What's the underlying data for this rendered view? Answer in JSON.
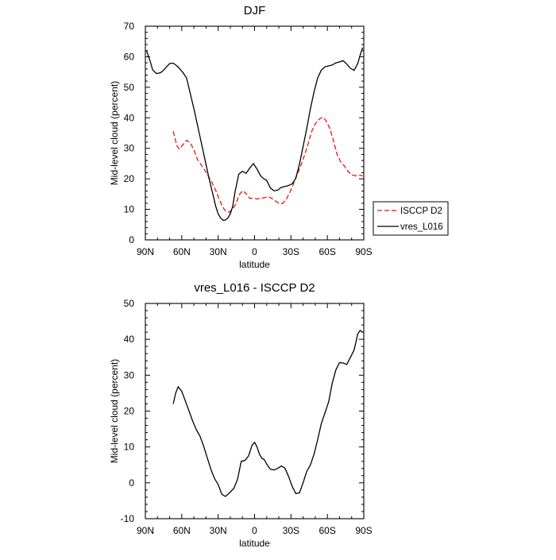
{
  "chart_data": [
    {
      "type": "line",
      "title": "DJF",
      "xlabel": "latitude",
      "ylabel": "Mid-level cloud (percent)",
      "xlim": [
        90,
        -90
      ],
      "ylim": [
        0,
        70
      ],
      "x_ticks": [
        {
          "value": 90,
          "label": "90N"
        },
        {
          "value": 60,
          "label": "60N"
        },
        {
          "value": 30,
          "label": "30N"
        },
        {
          "value": 0,
          "label": "0"
        },
        {
          "value": -30,
          "label": "30S"
        },
        {
          "value": -60,
          "label": "60S"
        },
        {
          "value": -90,
          "label": "90S"
        }
      ],
      "y_ticks": [
        0,
        10,
        20,
        30,
        40,
        50,
        60,
        70
      ],
      "legend": {
        "placement": "right",
        "entries": [
          "ISCCP D2",
          "vres_L016"
        ]
      },
      "series": [
        {
          "name": "ISCCP D2",
          "color": "#e8150f",
          "style": "dashed",
          "x": [
            67,
            64,
            62,
            59,
            56,
            53,
            50,
            47,
            44,
            41,
            38,
            35,
            32,
            29,
            26,
            24,
            21,
            18,
            15,
            13,
            10,
            7,
            4,
            1,
            -2,
            -5,
            -8,
            -11,
            -14,
            -17,
            -20,
            -23,
            -26,
            -29,
            -32,
            -35,
            -38,
            -41,
            -44,
            -47,
            -50,
            -53,
            -56,
            -59,
            -62,
            -65,
            -68,
            -71,
            -74,
            -77,
            -80,
            -83,
            -86,
            -89
          ],
          "y": [
            35.6,
            30.8,
            29.8,
            31.2,
            32.6,
            31.8,
            29.5,
            26.3,
            24.6,
            22.8,
            20.8,
            18.8,
            16.2,
            13.2,
            10.6,
            9.5,
            9.0,
            10.2,
            12.0,
            14.5,
            16.1,
            15.2,
            13.6,
            13.7,
            13.4,
            13.6,
            13.8,
            14.2,
            13.6,
            12.8,
            12.0,
            11.9,
            13.2,
            15.5,
            18.3,
            21.4,
            24.2,
            27.5,
            31.2,
            35.5,
            38.0,
            39.5,
            40.2,
            39.0,
            36.5,
            32.5,
            28.0,
            25.5,
            24.2,
            22.5,
            21.3,
            21.0,
            21.2,
            21.0
          ]
        },
        {
          "name": "vres_L016",
          "color": "#000000",
          "style": "solid",
          "x": [
            89,
            86,
            84,
            81,
            78,
            76,
            73,
            70,
            67,
            64,
            62,
            59,
            56,
            53,
            50,
            47,
            44,
            41,
            38,
            35,
            32,
            30,
            28,
            26,
            24,
            22,
            20,
            18,
            16,
            13,
            10,
            7,
            4,
            1,
            -2,
            -5,
            -7,
            -10,
            -13,
            -16,
            -19,
            -22,
            -25,
            -28,
            -31,
            -34,
            -37,
            -40,
            -43,
            -46,
            -49,
            -52,
            -55,
            -58,
            -61,
            -64,
            -67,
            -70,
            -73,
            -76,
            -79,
            -82,
            -85,
            -87,
            -89
          ],
          "y": [
            62.0,
            58.5,
            55.7,
            54.5,
            54.7,
            55.2,
            56.5,
            57.8,
            57.9,
            57.0,
            56.2,
            54.8,
            53.0,
            48.0,
            43.0,
            37.5,
            32.0,
            26.5,
            21.0,
            16.0,
            11.0,
            8.5,
            7.2,
            6.4,
            6.5,
            7.2,
            8.5,
            11.0,
            16.0,
            21.5,
            22.5,
            21.8,
            23.5,
            25.0,
            23.2,
            21.0,
            20.2,
            19.5,
            17.0,
            16.1,
            16.3,
            17.2,
            17.5,
            17.8,
            18.4,
            20.2,
            24.8,
            30.6,
            36.5,
            43.0,
            48.5,
            53.0,
            55.6,
            56.7,
            57.0,
            57.3,
            58.0,
            58.3,
            58.7,
            57.6,
            56.2,
            55.5,
            57.8,
            60.5,
            63.0
          ]
        }
      ]
    },
    {
      "type": "line",
      "title": "vres_L016 - ISCCP D2",
      "xlabel": "latitude",
      "ylabel": "Mid-level cloud (percent)",
      "xlim": [
        90,
        -90
      ],
      "ylim": [
        -10,
        50
      ],
      "x_ticks": [
        {
          "value": 90,
          "label": "90N"
        },
        {
          "value": 60,
          "label": "60N"
        },
        {
          "value": 30,
          "label": "30N"
        },
        {
          "value": 0,
          "label": "0"
        },
        {
          "value": -30,
          "label": "30S"
        },
        {
          "value": -60,
          "label": "60S"
        },
        {
          "value": -90,
          "label": "90S"
        }
      ],
      "y_ticks": [
        -10,
        0,
        10,
        20,
        30,
        40,
        50
      ],
      "series": [
        {
          "name": "vres_L016 - ISCCP D2",
          "color": "#000000",
          "style": "solid",
          "x": [
            67,
            65,
            63,
            60,
            57,
            54,
            51,
            48,
            45,
            42,
            39,
            36,
            33,
            30,
            27,
            24,
            22,
            20,
            17,
            14,
            11,
            8,
            5,
            2,
            0,
            -2,
            -4,
            -6,
            -8,
            -10,
            -13,
            -16,
            -19,
            -22,
            -25,
            -28,
            -31,
            -34,
            -37,
            -40,
            -43,
            -46,
            -49,
            -52,
            -55,
            -58,
            -61,
            -64,
            -67,
            -70,
            -73,
            -76,
            -79,
            -82,
            -85,
            -87,
            -89
          ],
          "y": [
            22.0,
            25.0,
            26.8,
            25.5,
            22.8,
            20.0,
            17.2,
            14.8,
            13.0,
            10.3,
            7.0,
            3.8,
            1.2,
            -0.5,
            -3.2,
            -3.8,
            -3.2,
            -2.6,
            -1.5,
            1.0,
            6.0,
            6.2,
            7.5,
            10.5,
            11.3,
            10.0,
            8.0,
            6.8,
            6.5,
            5.2,
            3.8,
            3.6,
            4.0,
            4.7,
            4.1,
            1.8,
            -1.0,
            -3.0,
            -2.8,
            0.0,
            3.2,
            5.0,
            8.0,
            12.0,
            16.5,
            19.5,
            22.5,
            27.8,
            31.5,
            33.5,
            33.4,
            33.0,
            35.0,
            37.0,
            41.5,
            42.5,
            42.0
          ]
        }
      ]
    }
  ]
}
